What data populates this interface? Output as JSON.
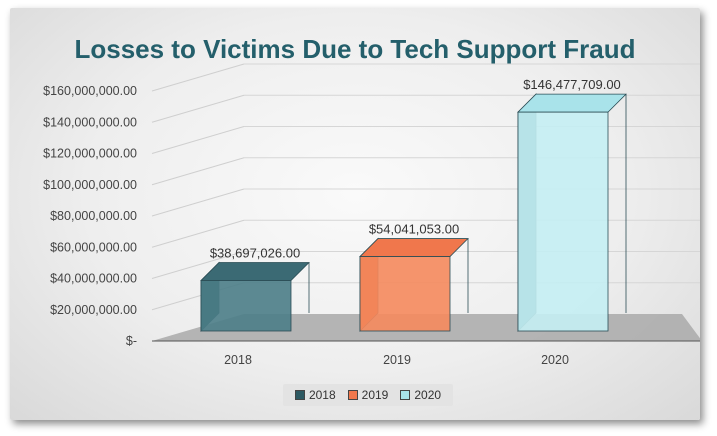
{
  "chart_data": {
    "type": "bar",
    "title": "Losses to Victims Due to Tech Support Fraud",
    "categories": [
      "2018",
      "2019",
      "2020"
    ],
    "values": [
      38697026.0,
      54041053.0,
      146477709.0
    ],
    "value_labels": [
      "$38,697,026.00",
      "$54,041,053.00",
      "$146,477,709.00"
    ],
    "y_ticks": [
      {
        "value": 0,
        "label": "$-"
      },
      {
        "value": 20000000,
        "label": "$20,000,000.00"
      },
      {
        "value": 40000000,
        "label": "$40,000,000.00"
      },
      {
        "value": 60000000,
        "label": "$60,000,000.00"
      },
      {
        "value": 80000000,
        "label": "$80,000,000.00"
      },
      {
        "value": 100000000,
        "label": "$100,000,000.00"
      },
      {
        "value": 120000000,
        "label": "$120,000,000.00"
      },
      {
        "value": 140000000,
        "label": "$140,000,000.00"
      },
      {
        "value": 160000000,
        "label": "$160,000,000.00"
      }
    ],
    "ylim": [
      0,
      160000000
    ],
    "grid": true,
    "legend_position": "bottom",
    "legend": [
      "2018",
      "2019",
      "2020"
    ],
    "colors": {
      "2018": {
        "front": "#4b7d87",
        "side": "#2d5962",
        "top": "#3b6a74"
      },
      "2019": {
        "front": "#f58a5d",
        "side": "#d8623a",
        "top": "#f0774c"
      },
      "2020": {
        "front": "#c4eef3",
        "side": "#3f7d87",
        "top": "#a9e3ea"
      }
    }
  }
}
